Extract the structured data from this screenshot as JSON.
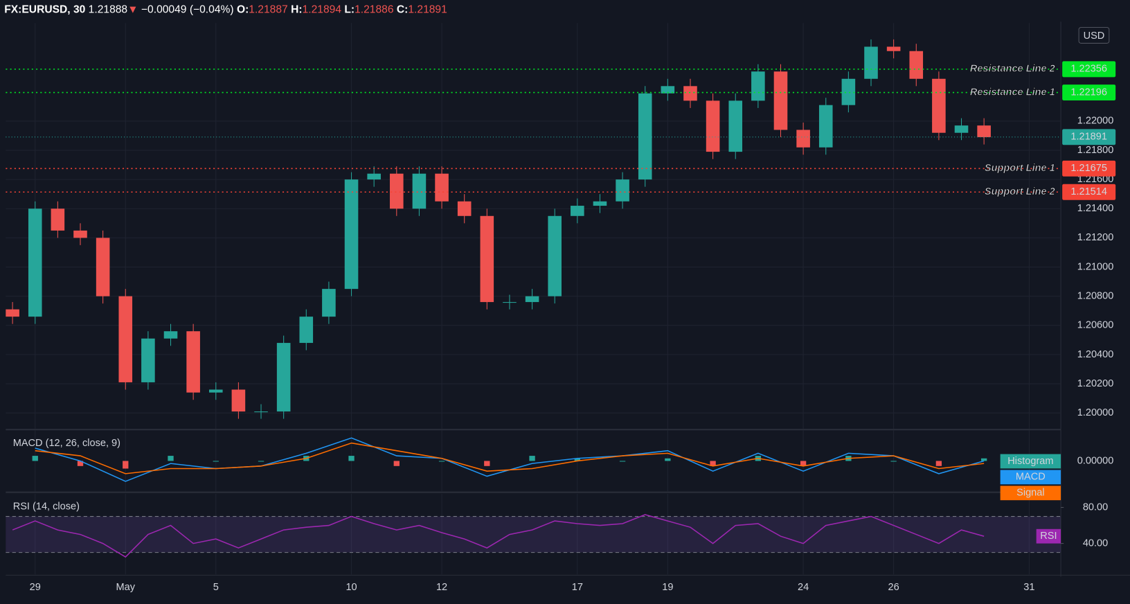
{
  "header": {
    "symbol": "FX:EURUSD, 30",
    "last": "1.21888",
    "change_arrow": "▼",
    "change": "−0.00049 (−0.04%)",
    "ohlc": [
      {
        "label": "O:",
        "value": "1.21887"
      },
      {
        "label": "H:",
        "value": "1.21894"
      },
      {
        "label": "L:",
        "value": "1.21886"
      },
      {
        "label": "C:",
        "value": "1.21891"
      }
    ]
  },
  "chart_data": [
    {
      "type": "candlestick",
      "currency": "USD",
      "up_color": "#26a69a",
      "down_color": "#ef5350",
      "grid": true,
      "x": [
        -0.5,
        0,
        0.5,
        1,
        1.5,
        2,
        2.5,
        3,
        3.5,
        4,
        4.5,
        5,
        5.5,
        6,
        6.5,
        7,
        7.5,
        8,
        8.5,
        9,
        9.5,
        10,
        10.5,
        11,
        11.5,
        12,
        12.5,
        13,
        13.5,
        14,
        14.5,
        15,
        15.5,
        16,
        16.5,
        17,
        17.5,
        18,
        18.5,
        19,
        19.5,
        20,
        20.5,
        21
      ],
      "open": [
        1.2071,
        1.2066,
        1.214,
        1.2125,
        1.212,
        1.208,
        1.2021,
        1.2051,
        1.2056,
        1.2014,
        1.2016,
        1.2001,
        1.2001,
        1.2048,
        1.2066,
        1.2085,
        1.216,
        1.2164,
        1.214,
        1.2164,
        1.2145,
        1.2135,
        1.2076,
        1.2076,
        1.208,
        1.2135,
        1.2142,
        1.2145,
        1.216,
        1.2219,
        1.2224,
        1.2214,
        1.2179,
        1.2214,
        1.2234,
        1.2194,
        1.2182,
        1.2211,
        1.2229,
        1.2251,
        1.2248,
        1.2229,
        1.2192,
        1.2197
      ],
      "high": [
        1.2076,
        1.2145,
        1.2145,
        1.213,
        1.2125,
        1.2085,
        1.2056,
        1.2061,
        1.2061,
        1.2021,
        1.2021,
        1.2006,
        1.2053,
        1.2071,
        1.209,
        1.2165,
        1.2169,
        1.2169,
        1.2169,
        1.2169,
        1.215,
        1.214,
        1.2081,
        1.2085,
        1.214,
        1.2147,
        1.215,
        1.2165,
        1.2224,
        1.2229,
        1.2229,
        1.2219,
        1.2219,
        1.2239,
        1.2239,
        1.2199,
        1.2216,
        1.2234,
        1.2256,
        1.2256,
        1.2253,
        1.2234,
        1.2202,
        1.2202
      ],
      "low": [
        1.2061,
        1.2061,
        1.212,
        1.2115,
        1.2075,
        1.2016,
        1.2016,
        1.2046,
        1.2009,
        1.2009,
        1.1996,
        1.1996,
        1.1996,
        1.2043,
        1.2061,
        1.208,
        1.2155,
        1.2135,
        1.2135,
        1.214,
        1.213,
        1.2071,
        1.2071,
        1.2071,
        1.2075,
        1.213,
        1.2137,
        1.214,
        1.2155,
        1.2214,
        1.2209,
        1.2174,
        1.2174,
        1.2209,
        1.2189,
        1.2177,
        1.2177,
        1.2206,
        1.2224,
        1.2243,
        1.2224,
        1.2187,
        1.2187,
        1.2184
      ],
      "close": [
        1.2066,
        1.214,
        1.2125,
        1.212,
        1.208,
        1.2021,
        1.2051,
        1.2056,
        1.2014,
        1.2016,
        1.2001,
        1.2001,
        1.2048,
        1.2066,
        1.2085,
        1.216,
        1.2164,
        1.214,
        1.2164,
        1.2145,
        1.2135,
        1.2076,
        1.2076,
        1.208,
        1.2135,
        1.2142,
        1.2145,
        1.216,
        1.2219,
        1.2224,
        1.2214,
        1.2179,
        1.2214,
        1.2234,
        1.2194,
        1.2182,
        1.2211,
        1.2229,
        1.2251,
        1.2248,
        1.2229,
        1.2192,
        1.2197,
        1.2189
      ],
      "xlim": [
        -0.65,
        22.7
      ],
      "xticks": [
        {
          "value": 0,
          "label": "29"
        },
        {
          "value": 2,
          "label": "May"
        },
        {
          "value": 4,
          "label": "5"
        },
        {
          "value": 7,
          "label": "10"
        },
        {
          "value": 9,
          "label": "12"
        },
        {
          "value": 12,
          "label": "17"
        },
        {
          "value": 14,
          "label": "19"
        },
        {
          "value": 17,
          "label": "24"
        },
        {
          "value": 19,
          "label": "26"
        },
        {
          "value": 22,
          "label": "31"
        }
      ],
      "ylim": [
        1.19891,
        1.22672
      ],
      "yticks": [
        {
          "value": 1.2,
          "label": "1.20000"
        },
        {
          "value": 1.202,
          "label": "1.20200"
        },
        {
          "value": 1.204,
          "label": "1.20400"
        },
        {
          "value": 1.206,
          "label": "1.20600"
        },
        {
          "value": 1.208,
          "label": "1.20800"
        },
        {
          "value": 1.21,
          "label": "1.21000"
        },
        {
          "value": 1.212,
          "label": "1.21200"
        },
        {
          "value": 1.214,
          "label": "1.21400"
        },
        {
          "value": 1.216,
          "label": "1.21600"
        },
        {
          "value": 1.218,
          "label": "1.21800"
        },
        {
          "value": 1.22,
          "label": "1.22000"
        }
      ],
      "levels": [
        {
          "name": "Resistance Line 2",
          "value": 1.22356,
          "color": "#00e626"
        },
        {
          "name": "Resistance Line 1",
          "value": 1.22196,
          "color": "#00e626"
        },
        {
          "name": "Support Line 1",
          "value": 1.21675,
          "color": "#f44336"
        },
        {
          "name": "Support Line 2",
          "value": 1.21514,
          "color": "#f44336"
        }
      ],
      "last_price": {
        "value": 1.21891,
        "color": "#26a69a"
      }
    },
    {
      "type": "macd",
      "title": "MACD (12, 26, close, 9)",
      "x": [
        0,
        1,
        2,
        3,
        4,
        5,
        6,
        7,
        8,
        9,
        10,
        11,
        12,
        13,
        14,
        15,
        16,
        17,
        18,
        19,
        20,
        21
      ],
      "ylim": [
        -0.0012,
        0.0012
      ],
      "yticks": [
        {
          "value": 0,
          "label": "0.00000"
        }
      ],
      "series": [
        {
          "name": "Histogram",
          "style": "bar",
          "color": "#26a69a",
          "negative_color": "#ef5350",
          "values": [
            0.0002,
            -0.0002,
            -0.0003,
            0.0002,
            0,
            0,
            0.0002,
            0.0002,
            -0.0002,
            0,
            -0.0002,
            0.0002,
            0.0001,
            0,
            0.0001,
            -0.0002,
            0.0002,
            -0.0002,
            0.0002,
            0,
            -0.0002,
            0.0001
          ]
        },
        {
          "name": "MACD",
          "style": "line",
          "color": "#2196f3",
          "values": [
            0.0005,
            0,
            -0.0008,
            -0.0001,
            -0.0003,
            -0.0002,
            0.0003,
            0.0009,
            0.0002,
            0.0001,
            -0.0006,
            -0.0001,
            0.0001,
            0.0002,
            0.0004,
            -0.0004,
            0.0003,
            -0.0004,
            0.0003,
            0.0002,
            -0.0005,
            0
          ]
        },
        {
          "name": "Signal",
          "style": "line",
          "color": "#ff6d00",
          "values": [
            0.0004,
            0.0002,
            -0.0005,
            -0.0003,
            -0.0003,
            -0.0002,
            0.0001,
            0.0007,
            0.0004,
            0.0001,
            -0.0004,
            -0.0003,
            0,
            0.0002,
            0.0003,
            -0.0002,
            0.0001,
            -0.0002,
            0.0001,
            0.0002,
            -0.0003,
            -0.0001
          ]
        }
      ]
    },
    {
      "type": "rsi",
      "title": "RSI (14, close)",
      "x": [
        -0.5,
        0,
        0.5,
        1,
        1.5,
        2,
        2.5,
        3,
        3.5,
        4,
        4.5,
        5,
        5.5,
        6,
        6.5,
        7,
        7.5,
        8,
        8.5,
        9,
        9.5,
        10,
        10.5,
        11,
        11.5,
        12,
        12.5,
        13,
        13.5,
        14,
        14.5,
        15,
        15.5,
        16,
        16.5,
        17,
        17.5,
        18,
        18.5,
        19,
        19.5,
        20,
        20.5,
        21
      ],
      "ylim": [
        5.6,
        95.2
      ],
      "yticks": [
        {
          "value": 40,
          "label": "40.00"
        },
        {
          "value": 80,
          "label": "80.00"
        }
      ],
      "band": [
        30,
        70
      ],
      "series": [
        {
          "name": "RSI",
          "color": "#9c27b0",
          "values": [
            55,
            65,
            55,
            50,
            40,
            25,
            50,
            60,
            40,
            45,
            35,
            45,
            55,
            58,
            60,
            70,
            62,
            55,
            60,
            52,
            45,
            35,
            50,
            55,
            65,
            62,
            60,
            62,
            72,
            65,
            58,
            40,
            60,
            62,
            48,
            40,
            60,
            65,
            70,
            60,
            50,
            40,
            55,
            48
          ]
        }
      ]
    }
  ]
}
